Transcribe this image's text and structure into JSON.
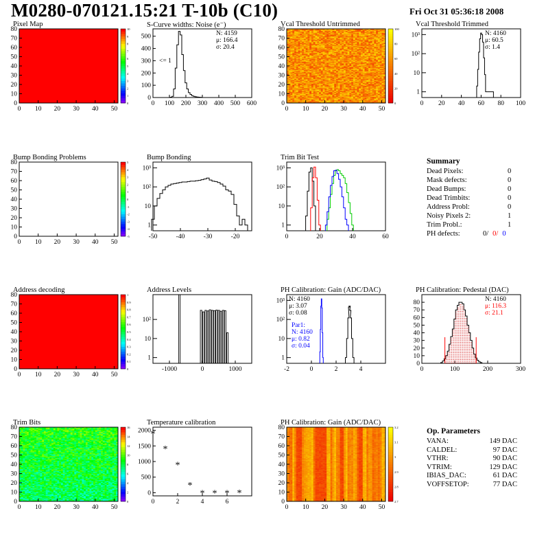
{
  "header": {
    "title": "M0280-070121.15:21 T-10b (C10)",
    "date": "Fri Oct 31 05:36:18 2008"
  },
  "chart_data": [
    {
      "id": "pixel-map",
      "type": "heatmap",
      "title": "Pixel Map",
      "xlim": [
        0,
        52
      ],
      "ylim": [
        0,
        80
      ],
      "xticks": [
        0,
        10,
        20,
        30,
        40,
        50
      ],
      "yticks": [
        0,
        10,
        20,
        30,
        40,
        50,
        60,
        70,
        80
      ],
      "uniform_color": "#ff0000",
      "palette": "rainbow",
      "zticks": [
        "10",
        "9",
        "8",
        "7",
        "6",
        "5",
        "4",
        "3",
        "2",
        "1",
        "0"
      ]
    },
    {
      "id": "scurve",
      "type": "histogram",
      "title": "S-Curve widths: Noise (e⁻)",
      "xlim": [
        0,
        600
      ],
      "ylim": [
        0,
        560
      ],
      "xticks": [
        0,
        100,
        200,
        300,
        400,
        500,
        600
      ],
      "yticks": [
        0,
        100,
        200,
        300,
        400,
        500
      ],
      "stats": [
        "N: 4159",
        "μ: 166.4",
        "σ: 20.4"
      ],
      "annotation": "<= 1",
      "x": [
        110,
        120,
        130,
        140,
        150,
        160,
        170,
        180,
        190,
        200,
        210,
        220,
        230,
        240,
        250,
        260,
        270,
        280,
        290
      ],
      "values": [
        3,
        10,
        70,
        240,
        430,
        540,
        510,
        350,
        220,
        120,
        70,
        40,
        25,
        15,
        10,
        6,
        4,
        3,
        2
      ]
    },
    {
      "id": "vcal-untrimmed",
      "type": "heatmap",
      "title": "Vcal Threshold Untrimmed",
      "xlim": [
        0,
        52
      ],
      "ylim": [
        0,
        80
      ],
      "xticks": [
        0,
        10,
        20,
        30,
        40,
        50
      ],
      "yticks": [
        0,
        10,
        20,
        30,
        40,
        50,
        60,
        70,
        80
      ],
      "palette": "heat",
      "pattern": "noise",
      "zticks": [
        "100",
        "80",
        "60",
        "40",
        "20",
        "0"
      ]
    },
    {
      "id": "vcal-trimmed",
      "type": "histogram",
      "title": "Vcal Threshold Trimmed",
      "log": true,
      "xlim": [
        0,
        100
      ],
      "ylim": [
        0.5,
        2000
      ],
      "xticks": [
        0,
        20,
        40,
        60,
        80,
        100
      ],
      "ytick_labels": [
        "1",
        "10",
        "10²",
        "10³"
      ],
      "stats": [
        "N: 4160",
        "μ: 60.5",
        "σ:  1.4"
      ],
      "x": [
        56,
        57,
        58,
        59,
        60,
        61,
        62,
        63,
        64,
        65,
        72
      ],
      "values": [
        2,
        15,
        120,
        600,
        1200,
        1000,
        400,
        60,
        8,
        1,
        1
      ]
    },
    {
      "id": "bump-problems",
      "type": "heatmap",
      "title": "Bump Bonding Problems",
      "xlim": [
        0,
        52
      ],
      "ylim": [
        0,
        80
      ],
      "xticks": [
        0,
        10,
        20,
        30,
        40,
        50
      ],
      "yticks": [
        0,
        10,
        20,
        30,
        40,
        50,
        60,
        70,
        80
      ],
      "palette": "rainbow",
      "pattern": "empty",
      "zticks": [
        "5",
        "4",
        "3",
        "2",
        "1",
        "0",
        "-1",
        "-2",
        "-3",
        "-4",
        "-5"
      ]
    },
    {
      "id": "bump-bonding",
      "type": "histogram",
      "title": "Bump Bonding",
      "log": true,
      "xlim": [
        -50,
        -14
      ],
      "ylim": [
        0.5,
        2000
      ],
      "xticks": [
        -50,
        -40,
        -30,
        -20
      ],
      "ytick_labels": [
        "1",
        "10",
        "10²",
        "10³"
      ],
      "x": [
        -50,
        -49,
        -48,
        -47,
        -46,
        -45,
        -44,
        -43,
        -42,
        -41,
        -40,
        -39,
        -38,
        -37,
        -36,
        -35,
        -34,
        -33,
        -32,
        -31,
        -30,
        -29,
        -28,
        -27,
        -26,
        -25,
        -24,
        -23,
        -22,
        -21,
        -20,
        -19,
        -18,
        -17,
        -16,
        -15
      ],
      "values": [
        2,
        10,
        25,
        45,
        70,
        100,
        120,
        140,
        150,
        160,
        170,
        180,
        180,
        190,
        200,
        200,
        210,
        220,
        240,
        260,
        290,
        230,
        200,
        190,
        170,
        140,
        110,
        70,
        60,
        40,
        12,
        3,
        1,
        2,
        1,
        0.4
      ]
    },
    {
      "id": "trim-bit-test",
      "type": "histogram",
      "title": "Trim Bit Test",
      "log": true,
      "xlim": [
        0,
        60
      ],
      "ylim": [
        0.5,
        2000
      ],
      "xticks": [
        0,
        20,
        40,
        60
      ],
      "ytick_labels": [
        "1",
        "10",
        "10²",
        "10³"
      ],
      "series": [
        {
          "color": "#000000",
          "x": [
            12,
            13,
            14,
            15,
            16,
            17
          ],
          "values": [
            3,
            60,
            600,
            1000,
            200,
            10
          ]
        },
        {
          "color": "#ff0000",
          "x": [
            15,
            16,
            17,
            18,
            19,
            20
          ],
          "values": [
            8,
            300,
            1100,
            300,
            20,
            1
          ]
        },
        {
          "color": "#00cc00",
          "x": [
            25,
            26,
            27,
            28,
            29,
            30,
            31,
            32,
            33,
            34,
            35,
            36,
            37,
            38,
            39,
            40
          ],
          "values": [
            2,
            8,
            40,
            150,
            400,
            700,
            800,
            700,
            500,
            400,
            300,
            150,
            50,
            15,
            4,
            1
          ]
        },
        {
          "color": "#0000ff",
          "x": [
            24,
            25,
            26,
            27,
            28,
            29,
            30,
            31,
            32,
            33,
            34,
            35,
            36,
            37
          ],
          "values": [
            1,
            5,
            30,
            120,
            350,
            700,
            750,
            500,
            250,
            100,
            30,
            8,
            2,
            1
          ]
        }
      ]
    },
    {
      "id": "address-decoding",
      "type": "heatmap",
      "title": "Address decoding",
      "xlim": [
        0,
        52
      ],
      "ylim": [
        0,
        80
      ],
      "xticks": [
        0,
        10,
        20,
        30,
        40,
        50
      ],
      "yticks": [
        0,
        10,
        20,
        30,
        40,
        50,
        60,
        70,
        80
      ],
      "uniform_color": "#ff0000",
      "palette": "rainbow",
      "zticks": [
        "1",
        "0.9",
        "0.8",
        "0.7",
        "0.6",
        "0.5",
        "0.4",
        "0.3",
        "0.2",
        "0.1",
        "0"
      ]
    },
    {
      "id": "address-levels",
      "type": "histogram",
      "title": "Address Levels",
      "log": true,
      "xlim": [
        -1500,
        1500
      ],
      "ylim": [
        0.5,
        2000
      ],
      "xticks": [
        -1000,
        0,
        1000
      ],
      "ytick_labels": [
        "1",
        "10",
        "10²"
      ],
      "x": [
        -700,
        -40,
        30,
        100,
        170,
        230,
        300,
        360,
        430,
        500,
        560,
        630,
        690,
        760
      ],
      "values": [
        2000,
        300,
        250,
        300,
        280,
        320,
        300,
        290,
        310,
        300,
        270,
        300,
        290,
        20
      ]
    },
    {
      "id": "ph-gain",
      "type": "histogram",
      "title": "PH Calibration: Gain (ADC/DAC)",
      "log": true,
      "xlim": [
        -2,
        6
      ],
      "ylim": [
        0.5,
        2000
      ],
      "xticks": [
        -2,
        0,
        2,
        4
      ],
      "ytick_labels": [
        "1",
        "10",
        "10²",
        "10³"
      ],
      "stats": [
        "N: 4160",
        "μ: 3.07",
        "σ: 0.08"
      ],
      "par1": [
        "Par1:",
        "N: 4160",
        "μ: 0.82",
        "σ: 0.04"
      ],
      "series": [
        {
          "color": "#0000ff",
          "x": [
            0.7,
            0.74,
            0.78,
            0.82,
            0.86,
            0.9,
            0.94
          ],
          "values": [
            2,
            30,
            500,
            1200,
            400,
            20,
            1
          ]
        },
        {
          "color": "#000000",
          "x": [
            2.8,
            2.9,
            3.0,
            3.05,
            3.1,
            3.15,
            3.2,
            3.3,
            3.4
          ],
          "values": [
            1,
            10,
            120,
            450,
            500,
            300,
            120,
            10,
            1
          ]
        }
      ]
    },
    {
      "id": "ph-pedestal",
      "type": "histogram",
      "title": "PH Calibration: Pedestal (DAC)",
      "xlim": [
        0,
        300
      ],
      "ylim": [
        0,
        90
      ],
      "xticks": [
        0,
        100,
        200,
        300
      ],
      "yticks": [
        0,
        10,
        20,
        30,
        40,
        50,
        60,
        70,
        80
      ],
      "stats": [
        "N: 4160",
        "μ: 116.3",
        "σ: 21.1"
      ],
      "fit_lines": [
        70,
        165
      ],
      "x": [
        60,
        65,
        70,
        75,
        80,
        85,
        90,
        95,
        100,
        105,
        110,
        115,
        120,
        125,
        130,
        135,
        140,
        145,
        150,
        155,
        160,
        165,
        170,
        175,
        180
      ],
      "values": [
        1,
        3,
        6,
        10,
        16,
        25,
        35,
        45,
        58,
        70,
        76,
        80,
        80,
        78,
        70,
        62,
        50,
        40,
        30,
        20,
        12,
        7,
        4,
        2,
        1
      ]
    },
    {
      "id": "trim-bits",
      "type": "heatmap",
      "title": "Trim Bits",
      "xlim": [
        0,
        52
      ],
      "ylim": [
        0,
        80
      ],
      "xticks": [
        0,
        10,
        20,
        30,
        40,
        50
      ],
      "yticks": [
        0,
        10,
        20,
        30,
        40,
        50,
        60,
        70,
        80
      ],
      "palette": "rainbow",
      "pattern": "trim",
      "zticks": [
        "16",
        "14",
        "12",
        "10",
        "8",
        "6",
        "4",
        "2",
        "0"
      ]
    },
    {
      "id": "temperature-calibration",
      "type": "scatter",
      "title": "Temperature calibration",
      "xlim": [
        0,
        8
      ],
      "ylim": [
        -100,
        2100
      ],
      "xticks": [
        0,
        2,
        4,
        6
      ],
      "yticks": [
        0,
        500,
        1000,
        1500,
        2000
      ],
      "x": [
        0,
        1,
        2,
        3,
        4,
        5,
        6,
        7
      ],
      "values": [
        1900,
        1420,
        900,
        250,
        0,
        0,
        0,
        10
      ]
    },
    {
      "id": "ph-gain-map",
      "type": "heatmap",
      "title": "PH Calibration: Gain (ADC/DAC)",
      "xlim": [
        0,
        52
      ],
      "ylim": [
        0,
        80
      ],
      "xticks": [
        0,
        10,
        20,
        30,
        40,
        50
      ],
      "yticks": [
        0,
        10,
        20,
        30,
        40,
        50,
        60,
        70,
        80
      ],
      "palette": "heat",
      "pattern": "columns",
      "zticks": [
        "3.2",
        "3.1",
        "3",
        "2.9",
        "2.8",
        "2.7"
      ]
    }
  ],
  "summary": {
    "title": "Summary",
    "rows": [
      {
        "label": "Dead Pixels:",
        "value": "0"
      },
      {
        "label": "Mask defects:",
        "value": "0"
      },
      {
        "label": "Dead Bumps:",
        "value": "0"
      },
      {
        "label": "Dead Trimbits:",
        "value": "0"
      },
      {
        "label": "Address Probl:",
        "value": "0"
      },
      {
        "label": "Noisy Pixels 2:",
        "value": "1"
      },
      {
        "label": "Trim Probl.:",
        "value": "1"
      }
    ],
    "ph_label": "PH defects:",
    "ph_values": [
      {
        "v": "0/",
        "color": "#000000"
      },
      {
        "v": "0/",
        "color": "#ff0000"
      },
      {
        "v": "0",
        "color": "#0000ff"
      }
    ]
  },
  "op_params": {
    "title": "Op. Parameters",
    "rows": [
      {
        "label": "VANA:",
        "value": "149 DAC"
      },
      {
        "label": "CALDEL:",
        "value": "97 DAC"
      },
      {
        "label": "VTHR:",
        "value": "90 DAC"
      },
      {
        "label": "VTRIM:",
        "value": "129 DAC"
      },
      {
        "label": "IBIAS_DAC:",
        "value": "61 DAC"
      },
      {
        "label": "VOFFSETOP:",
        "value": "77 DAC"
      }
    ]
  }
}
